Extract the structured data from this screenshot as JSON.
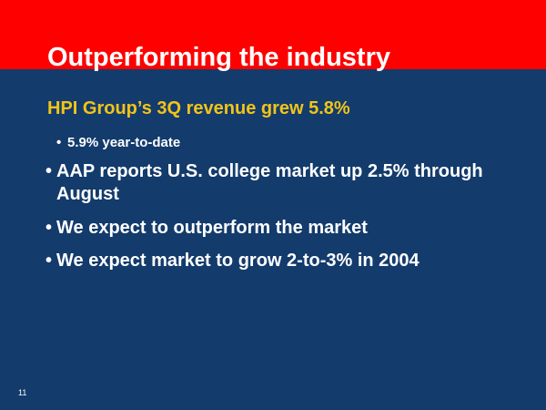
{
  "slide": {
    "title": "Outperforming the industry",
    "subtitle": "HPI Group’s 3Q revenue grew 5.8%",
    "sub_bullets": [
      "5.9% year-to-date"
    ],
    "bullets": [
      "AAP reports U.S. college market up 2.5% through August",
      "We expect to outperform the market",
      "We expect market to grow 2-to-3% in 2004"
    ],
    "page_number": "11"
  }
}
